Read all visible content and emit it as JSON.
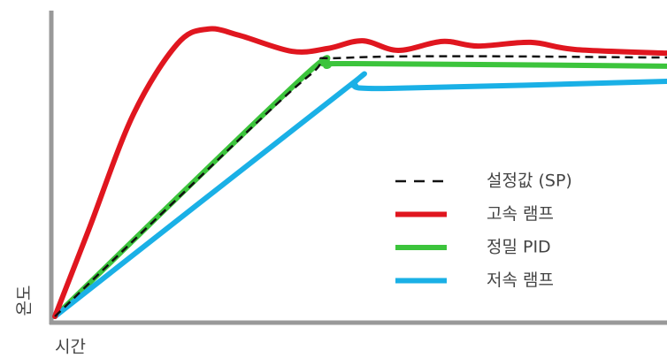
{
  "chart_data": {
    "type": "line",
    "x_label": "시간",
    "y_label": "온도",
    "xlim": [
      0,
      100
    ],
    "ylim": [
      0,
      100
    ],
    "legend": "right",
    "series": [
      {
        "name": "설정값 (SP)",
        "color": "#111111",
        "dash": true,
        "x": [
          0.3,
          20.2,
          41.8,
          49,
          100
        ],
        "values": [
          2,
          40,
          80,
          85.7,
          85.7
        ]
      },
      {
        "name": "고속 램프",
        "color": "#e0161f",
        "dash": false,
        "x": [
          0.3,
          5.8,
          13,
          20.2,
          25.2,
          30.3,
          38.9,
          44.7,
          50.4,
          56.2,
          63.4,
          69.2,
          77.8,
          85,
          100
        ],
        "values": [
          2,
          30,
          67,
          90,
          94.9,
          92.9,
          87.7,
          88.6,
          91.1,
          88,
          90.9,
          89.4,
          90.6,
          88.3,
          87.1
        ]
      },
      {
        "name": "정밀 PID",
        "color": "#3cc43c",
        "dash": false,
        "x": [
          0.3,
          40.3,
          44.7,
          49,
          100
        ],
        "values": [
          2,
          78.6,
          82.9,
          83.7,
          82.9
        ]
      },
      {
        "name": "저속 램프",
        "color": "#1ab0e6",
        "dash": false,
        "x": [
          0.3,
          46.8,
          49,
          54.8,
          100
        ],
        "values": [
          2,
          74.3,
          76.6,
          75.7,
          78
        ]
      }
    ]
  }
}
